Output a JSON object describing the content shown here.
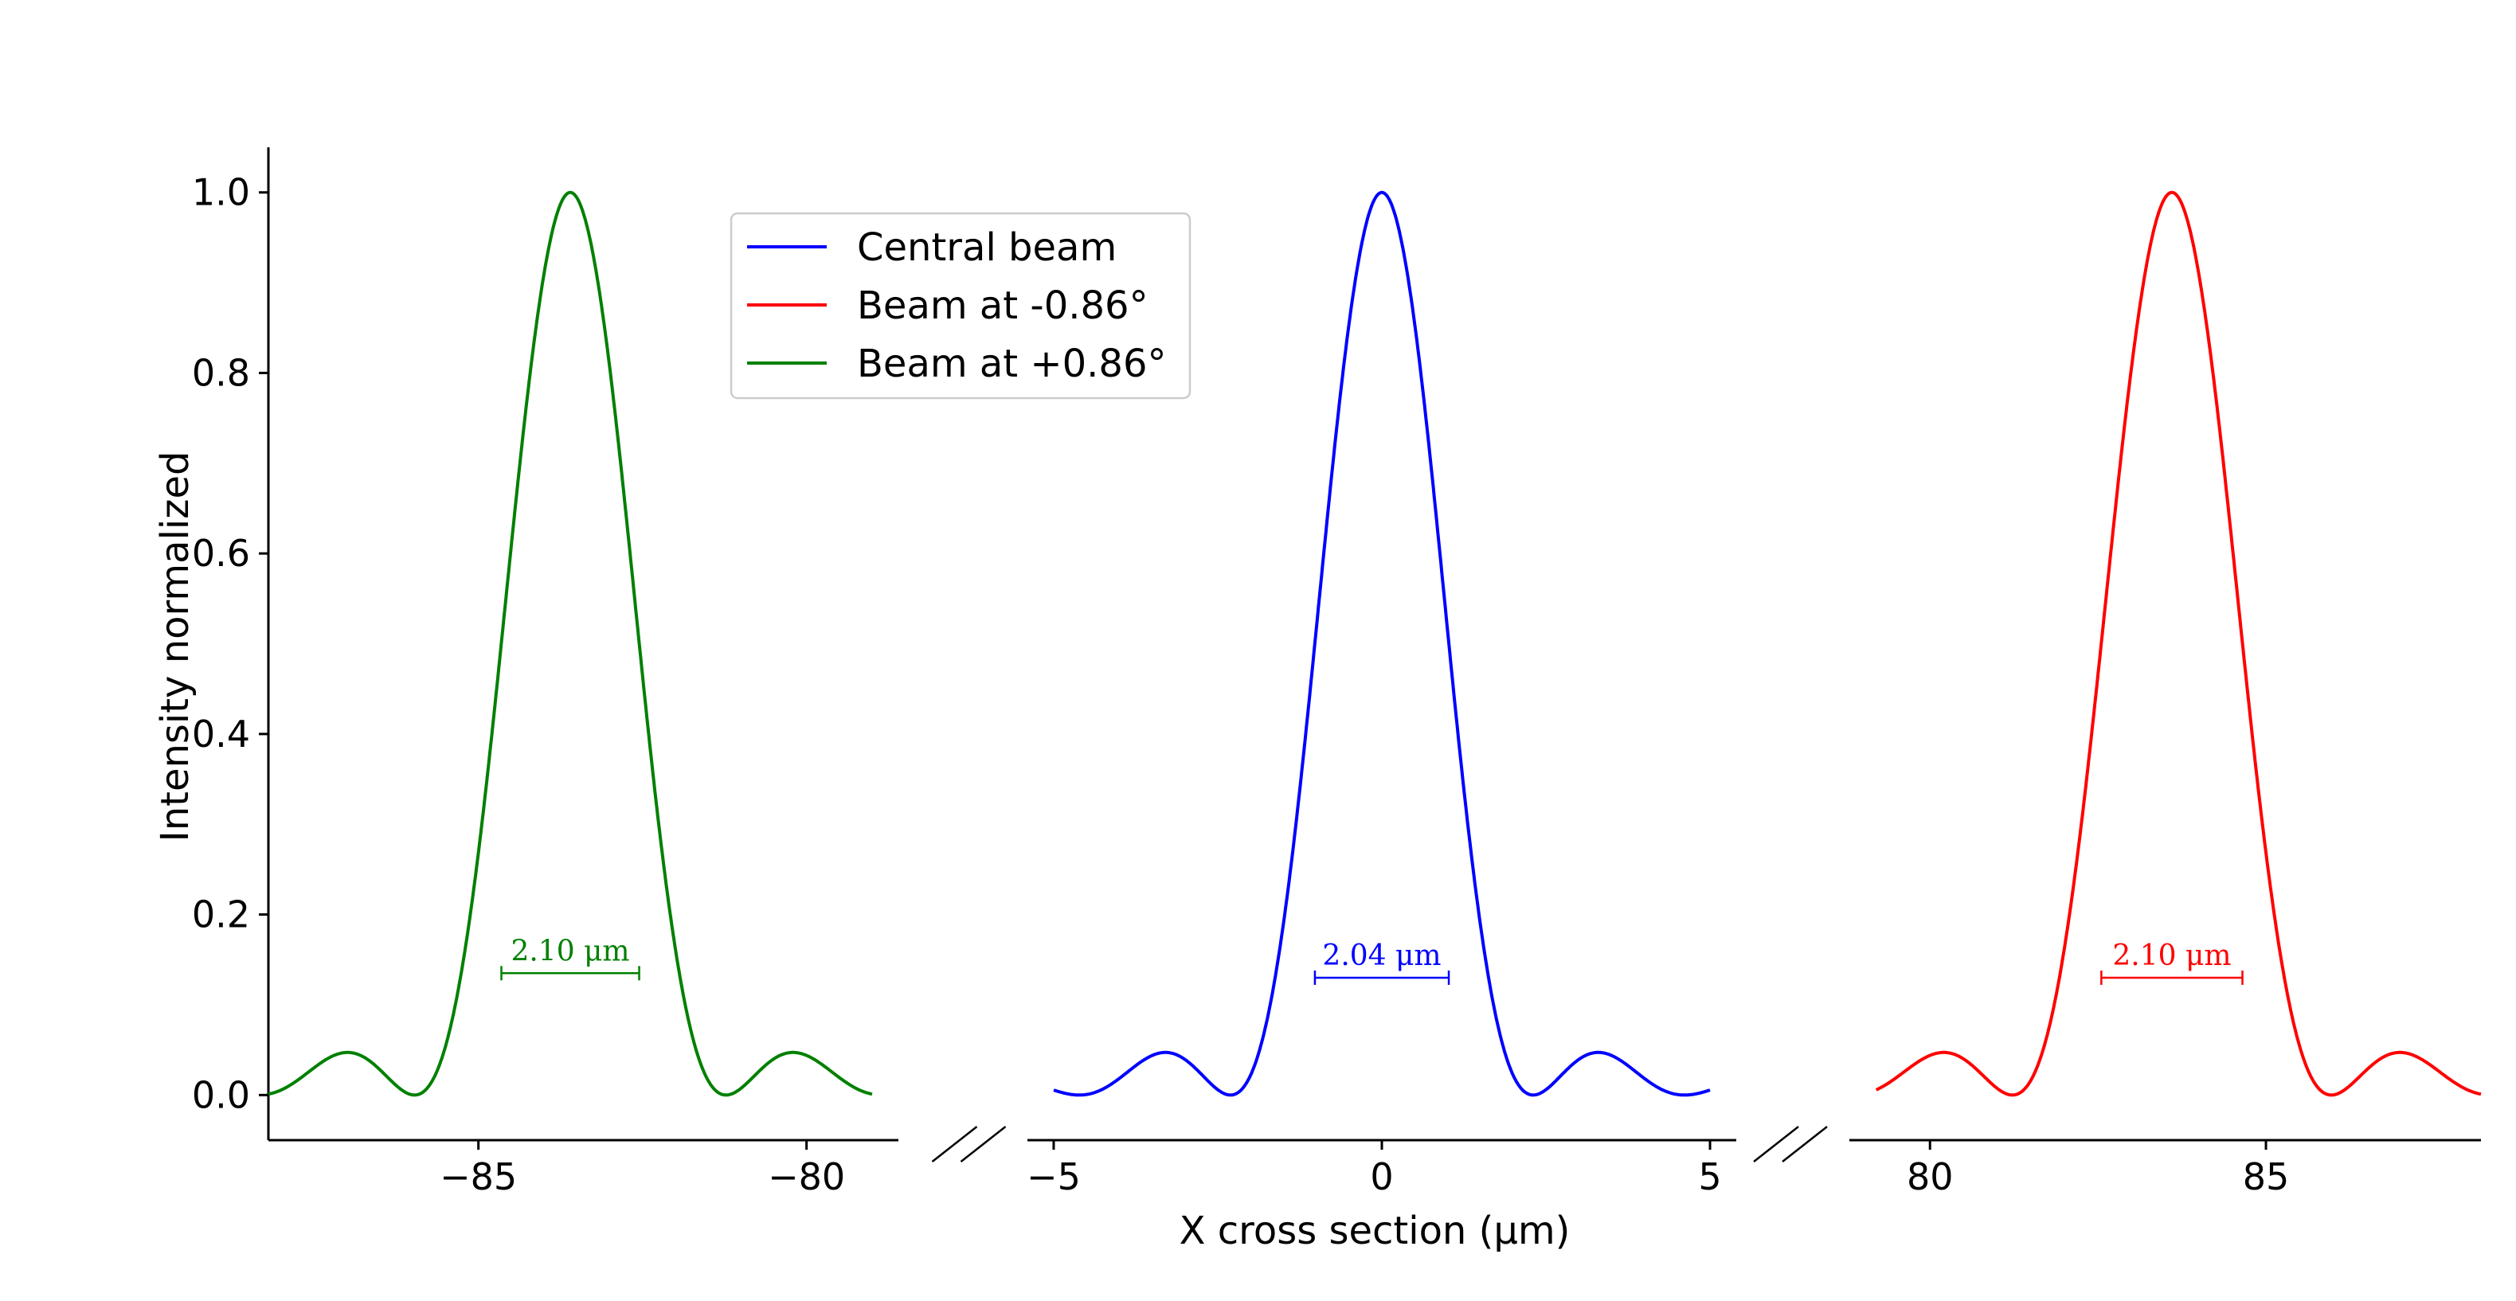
{
  "chart_data": {
    "type": "line",
    "title": "",
    "xlabel": "X cross section (μm)",
    "ylabel": "Intensity normalized",
    "ylim": [
      -0.05,
      1.05
    ],
    "yticks": [
      "0.0",
      "0.2",
      "0.4",
      "0.6",
      "0.8",
      "1.0"
    ],
    "grid": false,
    "legend_position": "upper-left of center",
    "broken_x_axis": true,
    "panels": [
      {
        "xlim": [
          -88.2,
          -78.6
        ],
        "xticks": [
          -85,
          -80
        ],
        "xtick_labels": [
          "−85",
          "−80"
        ]
      },
      {
        "xlim": [
          -5.4,
          5.4
        ],
        "xticks": [
          -5,
          0,
          5
        ],
        "xtick_labels": [
          "−5",
          "0",
          "5"
        ]
      },
      {
        "xlim": [
          78.8,
          88.2
        ],
        "xticks": [
          80,
          85
        ],
        "xtick_labels": [
          "80",
          "85"
        ]
      }
    ],
    "series": [
      {
        "name": "Central beam",
        "color": "#0000ff",
        "panel": 1,
        "center": 0.0,
        "x_range": [
          -5.0,
          5.0
        ],
        "fwhm": 2.04,
        "fwhm_label": "2.04 μm",
        "fwhm_level": 0.13
      },
      {
        "name": "Beam at -0.86°",
        "color": "#ff0000",
        "panel": 2,
        "center": 83.6,
        "x_range": [
          79.2,
          88.8
        ],
        "fwhm": 2.1,
        "fwhm_label": "2.10 μm",
        "fwhm_level": 0.13
      },
      {
        "name": "Beam at +0.86°",
        "color": "#008000",
        "panel": 0,
        "center": -83.6,
        "x_range": [
          -88.8,
          -79.0
        ],
        "fwhm": 2.1,
        "fwhm_label": "2.10 μm",
        "fwhm_level": 0.135
      }
    ]
  }
}
